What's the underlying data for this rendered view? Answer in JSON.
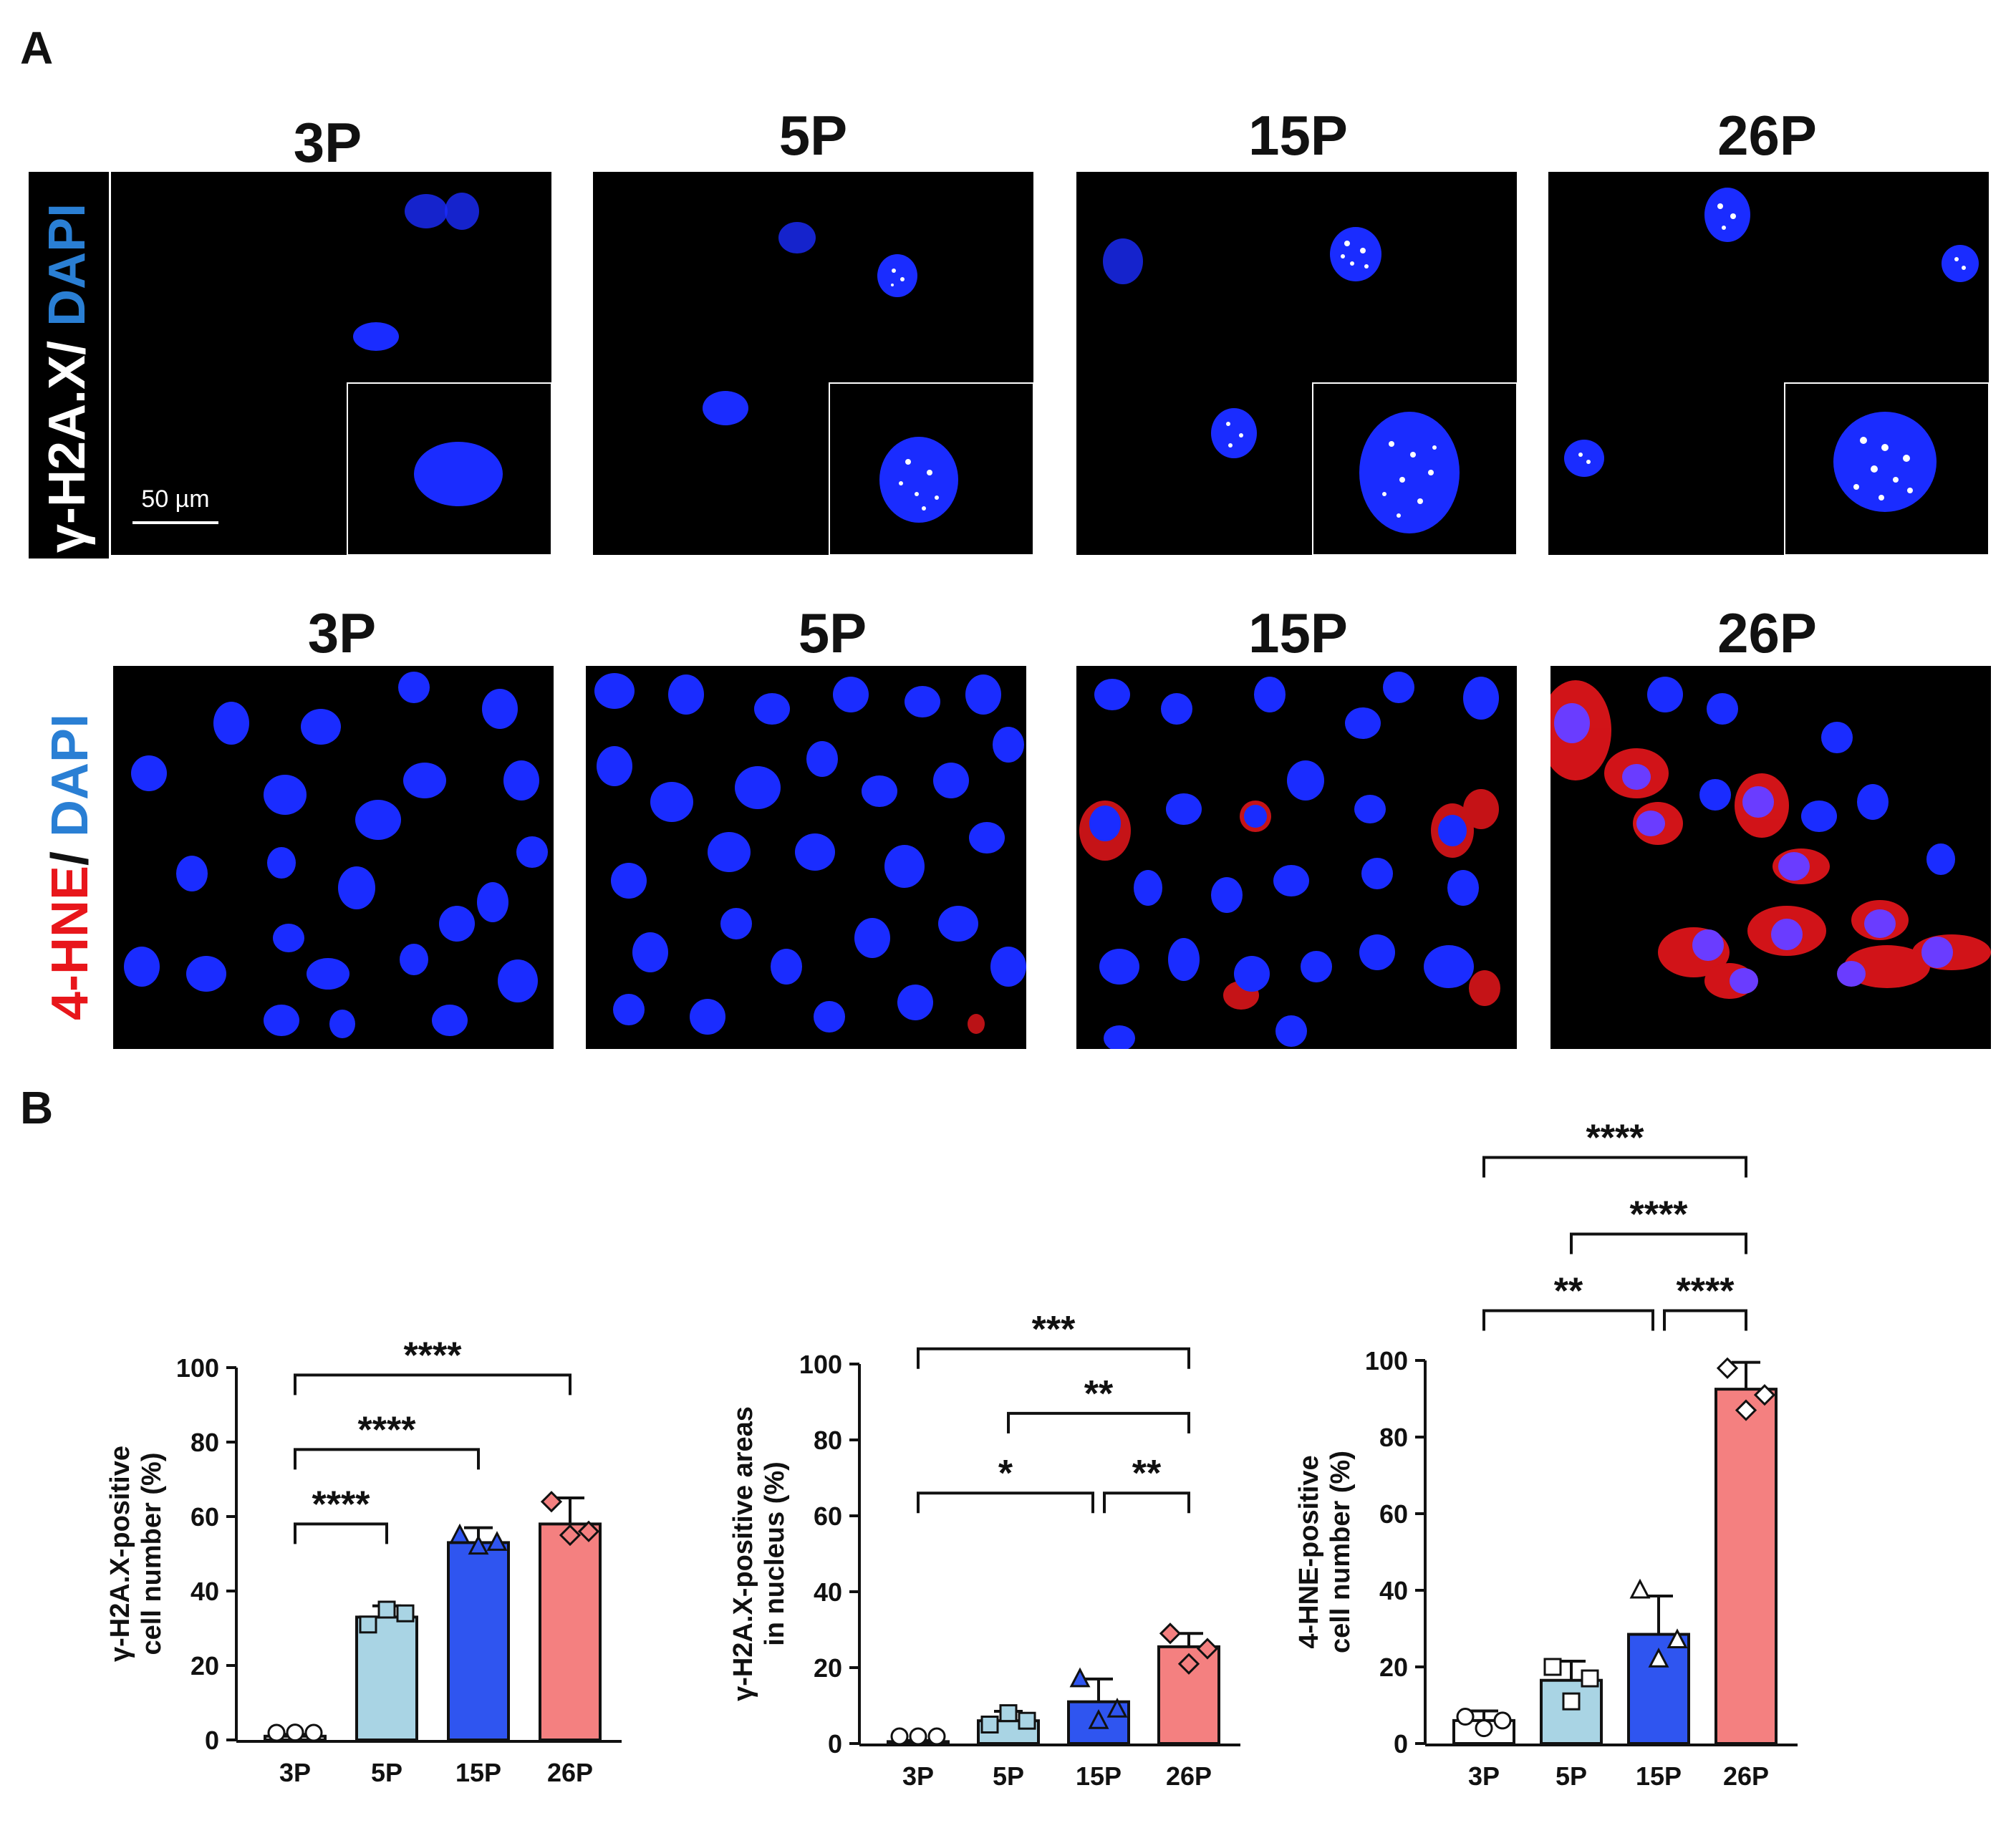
{
  "panel_a": {
    "letter": "A",
    "columns": [
      "3P",
      "5P",
      "15P",
      "26P"
    ],
    "row1": {
      "marker1": "γ-H2A.X",
      "sep": "/ ",
      "marker2": "DAPI"
    },
    "row2": {
      "marker1": "4-HNE",
      "sep": "/ ",
      "marker2": "DAPI"
    },
    "scale_bar": "50 µm",
    "colors": {
      "dapi": "#1a2cff",
      "h2ax": "#ffffff",
      "hne": "#e8161b",
      "label_blue": "#2a7fd4",
      "label_red": "#e8161b"
    }
  },
  "panel_b": {
    "letter": "B"
  },
  "chart_data": [
    {
      "type": "bar",
      "categories": [
        "3P",
        "5P",
        "15P",
        "26P"
      ],
      "values": [
        1,
        33,
        53,
        58
      ],
      "errors": [
        0.5,
        3,
        4,
        7
      ],
      "points": [
        [
          0,
          2,
          0
        ],
        [
          31,
          35,
          34
        ],
        [
          55,
          52,
          53
        ],
        [
          64,
          55,
          56
        ]
      ],
      "markers": [
        "circle",
        "square",
        "triangle",
        "diamond"
      ],
      "bar_colors": [
        "#ffffff",
        "#a9d4e4",
        "#2f55f0",
        "#f48080"
      ],
      "point_fill": [
        "#ffffff",
        "#a9d4e4",
        "#2f55f0",
        "#f48080"
      ],
      "ylabel": [
        "γ-H2A.X-positive",
        "cell number (%)"
      ],
      "yticks": [
        0,
        20,
        40,
        60,
        80,
        100
      ],
      "ylim": [
        0,
        100
      ],
      "significance": [
        {
          "from": 0,
          "to": 1,
          "label": "****",
          "level": 58
        },
        {
          "from": 0,
          "to": 2,
          "label": "****",
          "level": 78
        },
        {
          "from": 0,
          "to": 3,
          "label": "****",
          "level": 98
        }
      ]
    },
    {
      "type": "bar",
      "categories": [
        "3P",
        "5P",
        "15P",
        "26P"
      ],
      "values": [
        0.5,
        6,
        11,
        25.5
      ],
      "errors": [
        0.3,
        2.5,
        6,
        3.5
      ],
      "points": [
        [
          0,
          0,
          0
        ],
        [
          5,
          8,
          6
        ],
        [
          17,
          6,
          9
        ],
        [
          29,
          21,
          25
        ]
      ],
      "markers": [
        "circle",
        "square",
        "triangle",
        "diamond"
      ],
      "bar_colors": [
        "#ffffff",
        "#a9d4e4",
        "#2f55f0",
        "#f48080"
      ],
      "point_fill": [
        "#ffffff",
        "#a9d4e4",
        "#2f55f0",
        "#f48080"
      ],
      "ylabel": [
        "γ-H2A.X-positive areas",
        "in nucleus (%)"
      ],
      "yticks": [
        0,
        20,
        40,
        60,
        80,
        100
      ],
      "ylim": [
        0,
        100
      ],
      "significance": [
        {
          "from": 0,
          "to": 2,
          "label": "*",
          "level": 66
        },
        {
          "from": 2,
          "to": 3,
          "label": "**",
          "level": 66
        },
        {
          "from": 1,
          "to": 3,
          "label": "**",
          "level": 87
        },
        {
          "from": 0,
          "to": 3,
          "label": "***",
          "level": 104
        }
      ]
    },
    {
      "type": "bar",
      "categories": [
        "3P",
        "5P",
        "15P",
        "26P"
      ],
      "values": [
        6,
        16.5,
        28.5,
        92.5
      ],
      "errors": [
        2.5,
        5,
        10,
        7
      ],
      "points": [
        [
          7,
          4,
          6
        ],
        [
          20,
          11,
          17
        ],
        [
          40,
          22,
          27
        ],
        [
          98,
          87,
          91
        ]
      ],
      "markers": [
        "circle",
        "square",
        "triangle",
        "diamond"
      ],
      "bar_colors": [
        "#ffffff",
        "#a9d4e4",
        "#2f55f0",
        "#f48080"
      ],
      "point_fill": [
        "#ffffff",
        "#ffffff",
        "#ffffff",
        "#ffffff"
      ],
      "ylabel": [
        "4-HNE-positive",
        "cell number (%)"
      ],
      "yticks": [
        0,
        20,
        40,
        60,
        80,
        100
      ],
      "ylim": [
        0,
        100
      ],
      "significance": [
        {
          "from": 0,
          "to": 2,
          "label": "**",
          "level": 113
        },
        {
          "from": 2,
          "to": 3,
          "label": "****",
          "level": 113
        },
        {
          "from": 1,
          "to": 3,
          "label": "****",
          "level": 133
        },
        {
          "from": 0,
          "to": 3,
          "label": "****",
          "level": 153
        }
      ]
    }
  ]
}
